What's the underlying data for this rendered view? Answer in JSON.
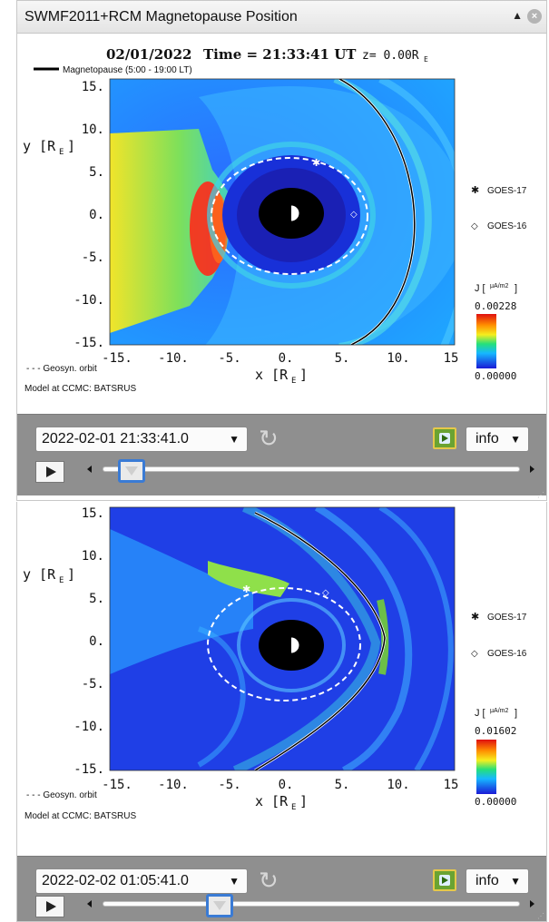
{
  "panels": [
    {
      "title": "SWMF2011+RCM Magnetopause Position",
      "plot_title_date": "02/01/2022",
      "plot_title_time": "Time = 21:33:41 UT",
      "plot_title_z": "z= 0.00R",
      "plot_title_z_sub": "E",
      "legend_magnetopause": "Magnetopause (5:00 - 19:00 LT)",
      "legend_geosyn": "- - - Geosyn. orbit",
      "model_text": "Model at CCMC: BATSRUS",
      "y_axis_label": "y [R",
      "y_axis_label_sub": "E",
      "x_axis_label": "x [R",
      "x_axis_label_sub": "E",
      "y_ticks": [
        "15.",
        "10.",
        "5.",
        "0.",
        "-5.",
        "-10.",
        "-15."
      ],
      "x_ticks": [
        "-15.",
        "-10.",
        "-5.",
        "0.",
        "5.",
        "10.",
        "15"
      ],
      "satellites": [
        {
          "marker": "✱",
          "name": "GOES-17"
        },
        {
          "marker": "◇",
          "name": "GOES-16"
        }
      ],
      "colorbar_label": "J [",
      "colorbar_unit": "μA/m2",
      "colorbar_max": "0.00228",
      "colorbar_min": "0.00000",
      "datetime": "2022-02-01 21:33:41.0",
      "info_label": "info",
      "slider_position": 0.07
    },
    {
      "y_axis_label": "y [R",
      "y_axis_label_sub": "E",
      "x_axis_label": "x [R",
      "x_axis_label_sub": "E",
      "legend_geosyn": "- - - Geosyn. orbit",
      "model_text": "Model at CCMC: BATSRUS",
      "y_ticks": [
        "15.",
        "10.",
        "5.",
        "0.",
        "-5.",
        "-10.",
        "-15."
      ],
      "x_ticks": [
        "-15.",
        "-10.",
        "-5.",
        "0.",
        "5.",
        "10.",
        "15"
      ],
      "satellites": [
        {
          "marker": "✱",
          "name": "GOES-17"
        },
        {
          "marker": "◇",
          "name": "GOES-16"
        }
      ],
      "colorbar_label": "J [",
      "colorbar_unit": "μA/m2",
      "colorbar_max": "0.01602",
      "colorbar_min": "0.00000",
      "datetime": "2022-02-02 01:05:41.0",
      "info_label": "info",
      "slider_position": 0.28
    }
  ]
}
